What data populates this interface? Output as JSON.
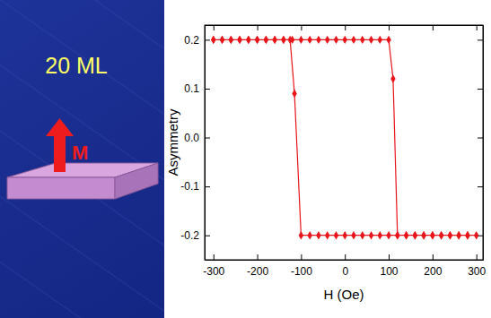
{
  "chart_data": {
    "type": "line",
    "x_label": "H (Oe)",
    "y_label": "Asymmetry",
    "annotations": [
      "20 ML",
      "M"
    ],
    "x": [
      -300,
      -280,
      -260,
      -240,
      -220,
      -200,
      -180,
      -160,
      -140,
      -120,
      -100,
      -80,
      -60,
      -40,
      -20,
      0,
      20,
      40,
      60,
      80,
      100,
      110,
      120,
      140,
      160,
      180,
      200,
      220,
      240,
      260,
      280,
      300,
      280,
      260,
      240,
      220,
      200,
      180,
      160,
      140,
      120,
      100,
      80,
      60,
      40,
      20,
      0,
      -20,
      -40,
      -60,
      -80,
      -100,
      -115,
      -125,
      -140,
      -160,
      -180,
      -200,
      -220,
      -240,
      -260,
      -280,
      -300
    ],
    "series": [
      {
        "color": "#e8151b",
        "marker": "diamond",
        "values": [
          0.2,
          0.2,
          0.2,
          0.2,
          0.2,
          0.2,
          0.2,
          0.2,
          0.2,
          0.2,
          0.2,
          0.2,
          0.2,
          0.2,
          0.2,
          0.2,
          0.2,
          0.2,
          0.2,
          0.2,
          0.2,
          0.12,
          -0.2,
          -0.2,
          -0.2,
          -0.2,
          -0.2,
          -0.2,
          -0.2,
          -0.2,
          -0.2,
          -0.2,
          -0.2,
          -0.2,
          -0.2,
          -0.2,
          -0.2,
          -0.2,
          -0.2,
          -0.2,
          -0.2,
          -0.2,
          -0.2,
          -0.2,
          -0.2,
          -0.2,
          -0.2,
          -0.2,
          -0.2,
          -0.2,
          -0.2,
          -0.2,
          0.09,
          0.2,
          0.2,
          0.2,
          0.2,
          0.2,
          0.2,
          0.2,
          0.2,
          0.2,
          0.2
        ]
      }
    ],
    "xlim": [
      -320,
      315
    ],
    "ylim": [
      -0.25,
      0.23
    ],
    "xticks": [
      -300,
      -200,
      -100,
      0,
      100,
      200,
      300
    ],
    "yticks": [
      -0.2,
      -0.1,
      {
        "value": 0,
        "label": "0.0"
      },
      0.1,
      0.2
    ],
    "grid": false
  }
}
